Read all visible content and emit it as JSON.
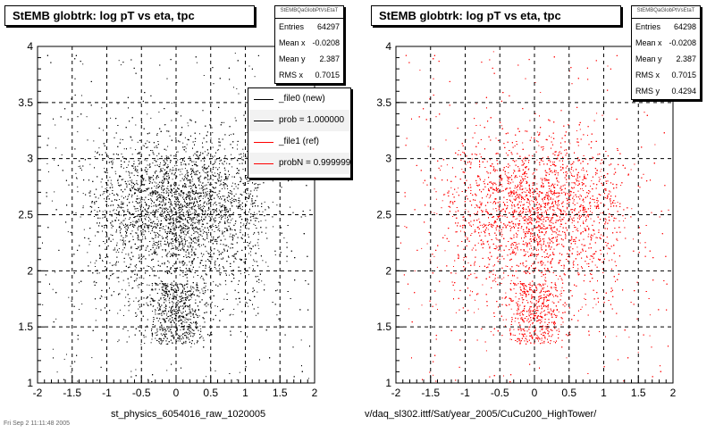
{
  "chart_data": [
    {
      "type": "scatter",
      "title": "StEMB globtrk: log pT vs eta, tpc",
      "xlabel": "st_physics_6054016_raw_1020005",
      "ylabel": "",
      "xlim": [
        -2,
        2
      ],
      "ylim": [
        1,
        4
      ],
      "xticks": [
        "-2",
        "-1.5",
        "-1",
        "-0.5",
        "0",
        "0.5",
        "1",
        "1.5",
        "2"
      ],
      "yticks": [
        "1",
        "1.5",
        "2",
        "2.5",
        "3",
        "3.5",
        "4"
      ],
      "grid": true,
      "series": [
        {
          "name": "_file0 (new)",
          "color": "#000000",
          "points_description_values": {
            "entries": 64297,
            "mean_x": -0.0208,
            "mean_y": 2.387,
            "rms_x": 0.7015
          }
        }
      ],
      "stats": {
        "header": "StEMBQaGlobPtVsEtaT",
        "rows": [
          {
            "label": "Entries",
            "value": "64297"
          },
          {
            "label": "Mean x",
            "value": "-0.0208"
          },
          {
            "label": "Mean y",
            "value": "2.387"
          },
          {
            "label": "RMS x",
            "value": "0.7015"
          }
        ]
      },
      "legend": [
        {
          "label": "_file0 (new)",
          "color": "#000000"
        },
        {
          "label": "prob = 1.000000",
          "color": "#000000"
        },
        {
          "label": "_file1 (ref)",
          "color": "#ff0000"
        },
        {
          "label": "probN = 0.999999",
          "color": "#ff0000"
        }
      ]
    },
    {
      "type": "scatter",
      "title": "StEMB globtrk: log pT vs eta, tpc",
      "xlabel": "v/daq_sl302.ittf/Sat/year_2005/CuCu200_HighTower/",
      "ylabel": "",
      "xlim": [
        -2,
        2
      ],
      "ylim": [
        1,
        4
      ],
      "xticks": [
        "-2",
        "-1.5",
        "-1",
        "-0.5",
        "0",
        "0.5",
        "1",
        "1.5",
        "2"
      ],
      "yticks": [
        "1",
        "1.5",
        "2",
        "2.5",
        "3",
        "3.5",
        "4"
      ],
      "grid": true,
      "series": [
        {
          "name": "_file1 (ref)",
          "color": "#ff0000",
          "points_description_values": {
            "entries": 64298,
            "mean_x": -0.0208,
            "mean_y": 2.387,
            "rms_x": 0.7015,
            "rms_y": 0.4294
          }
        }
      ],
      "stats": {
        "header": "StEMBQaGlobPtVsEtaT",
        "rows": [
          {
            "label": "Entries",
            "value": "64298"
          },
          {
            "label": "Mean x",
            "value": "-0.0208"
          },
          {
            "label": "Mean y",
            "value": "2.387"
          },
          {
            "label": "RMS x",
            "value": "0.7015"
          },
          {
            "label": "RMS y",
            "value": "0.4294"
          }
        ]
      }
    }
  ],
  "footer": "Fri Sep  2 11:11:48 2005"
}
